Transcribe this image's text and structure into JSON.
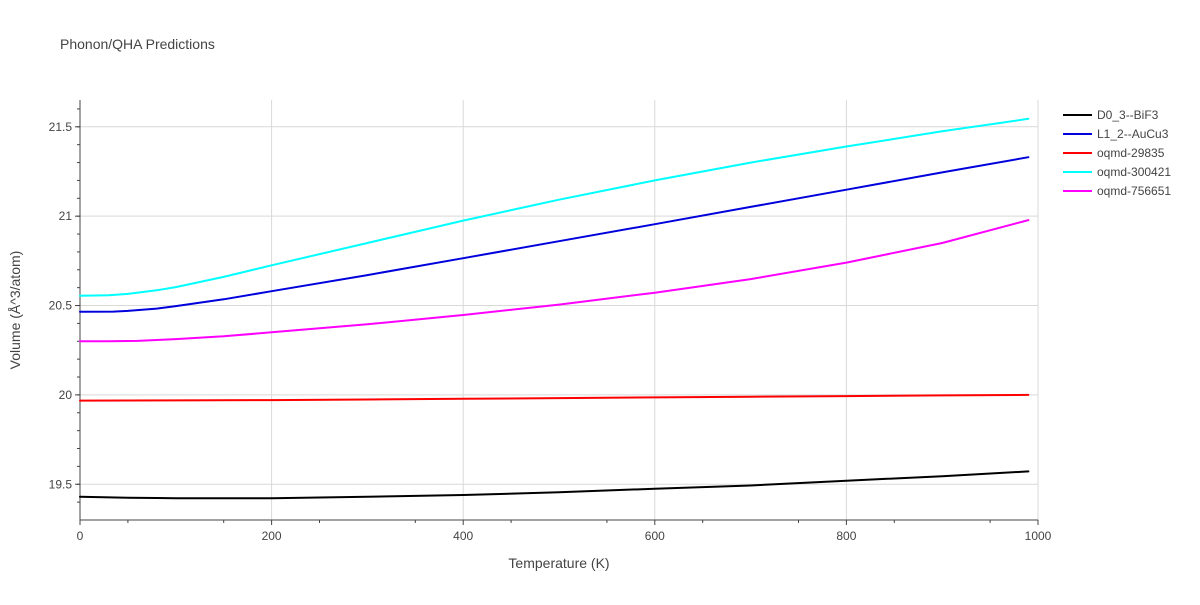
{
  "chart_data": {
    "type": "line",
    "title": "Phonon/QHA Predictions",
    "xlabel": "Temperature (K)",
    "ylabel": "Volume (Å^3/atom)",
    "xlim": [
      0,
      1000
    ],
    "ylim": [
      19.3,
      21.65
    ],
    "x_ticks": [
      0,
      200,
      400,
      600,
      800,
      1000
    ],
    "x_tick_labels": [
      "0",
      "200",
      "400",
      "600",
      "800",
      "1000"
    ],
    "y_ticks": [
      19.5,
      20,
      20.5,
      21,
      21.5
    ],
    "y_tick_labels": [
      "19.5",
      "20",
      "20.5",
      "21",
      "21.5"
    ],
    "grid": true,
    "legend_position": "top-right",
    "series": [
      {
        "name": "D0_3--BiF3",
        "color": "#000000",
        "x": [
          0,
          50,
          80,
          100,
          200,
          300,
          400,
          500,
          600,
          700,
          800,
          900,
          990
        ],
        "y": [
          19.43,
          19.425,
          19.423,
          19.422,
          19.422,
          19.43,
          19.44,
          19.455,
          19.475,
          19.493,
          19.52,
          19.545,
          19.572
        ]
      },
      {
        "name": "L1_2--AuCu3",
        "color": "#0000dd",
        "x": [
          0,
          35,
          50,
          80,
          100,
          150,
          200,
          300,
          400,
          500,
          600,
          700,
          800,
          900,
          990
        ],
        "y": [
          20.465,
          20.466,
          20.47,
          20.483,
          20.497,
          20.535,
          20.58,
          20.67,
          20.765,
          20.86,
          20.955,
          21.052,
          21.148,
          21.245,
          21.33
        ]
      },
      {
        "name": "oqmd-29835",
        "color": "#ff0000",
        "x": [
          0,
          100,
          200,
          300,
          400,
          500,
          600,
          700,
          800,
          900,
          990
        ],
        "y": [
          19.968,
          19.969,
          19.971,
          19.974,
          19.978,
          19.982,
          19.986,
          19.99,
          19.993,
          19.997,
          20.0
        ]
      },
      {
        "name": "oqmd-300421",
        "color": "#00ffff",
        "x": [
          0,
          30,
          50,
          80,
          100,
          150,
          200,
          300,
          400,
          500,
          600,
          700,
          800,
          900,
          990
        ],
        "y": [
          20.555,
          20.557,
          20.565,
          20.585,
          20.603,
          20.66,
          20.725,
          20.85,
          20.975,
          21.092,
          21.2,
          21.3,
          21.39,
          21.475,
          21.545
        ]
      },
      {
        "name": "oqmd-756651",
        "color": "#ff00ff",
        "x": [
          0,
          30,
          60,
          100,
          150,
          200,
          300,
          400,
          500,
          600,
          700,
          800,
          900,
          990
        ],
        "y": [
          20.3,
          20.3,
          20.302,
          20.312,
          20.328,
          20.35,
          20.395,
          20.447,
          20.505,
          20.572,
          20.648,
          20.74,
          20.85,
          20.978
        ]
      }
    ]
  }
}
